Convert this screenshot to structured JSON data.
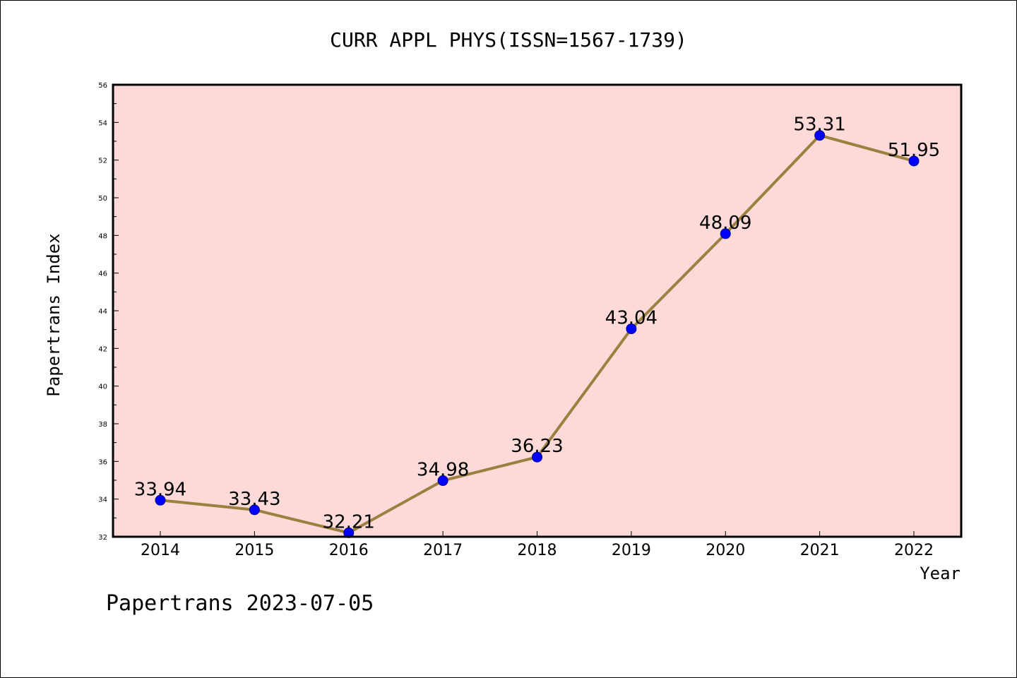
{
  "chart_data": {
    "type": "line",
    "title": "CURR APPL PHYS(ISSN=1567-1739)",
    "xlabel": "Year",
    "ylabel": "Papertrans Index",
    "categories": [
      "2014",
      "2015",
      "2016",
      "2017",
      "2018",
      "2019",
      "2020",
      "2021",
      "2022"
    ],
    "series": [
      {
        "values": [
          33.94,
          33.43,
          32.21,
          34.98,
          36.23,
          43.04,
          48.09,
          53.31,
          51.95
        ],
        "data_labels": [
          "33.94",
          "33.43",
          "32.21",
          "34.98",
          "36.23",
          "43.04",
          "48.09",
          "53.31",
          "51.95"
        ]
      }
    ],
    "ylim": [
      32,
      56
    ],
    "yticks": [
      "32",
      "34",
      "36",
      "38",
      "40",
      "42",
      "44",
      "46",
      "48",
      "50",
      "52",
      "54",
      "56"
    ],
    "grid": false,
    "colors": {
      "plot_background": "#fddad8",
      "line": "#9b8040",
      "marker": "#0000ff"
    }
  },
  "footer": {
    "text": "Papertrans 2023-07-05"
  }
}
